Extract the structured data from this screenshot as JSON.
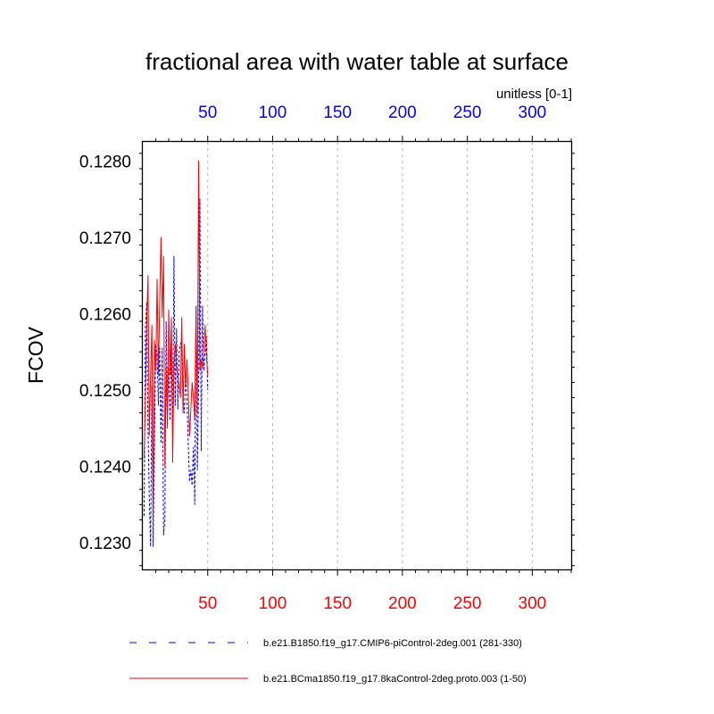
{
  "chart_data": {
    "type": "line",
    "title": "fractional area with water table at surface",
    "units_label": "unitless [0-1]",
    "ylabel": "FCOV",
    "xlabel": "",
    "xlim": [
      0,
      330
    ],
    "ylim": [
      0.12265,
      0.12825
    ],
    "x_ticks": [
      50,
      100,
      150,
      200,
      250,
      300
    ],
    "x_tick_labels": [
      "50",
      "100",
      "150",
      "200",
      "250",
      "300"
    ],
    "y_ticks": [
      0.123,
      0.124,
      0.125,
      0.126,
      0.127,
      0.128
    ],
    "y_tick_labels": [
      "0.1230",
      "0.1240",
      "0.1250",
      "0.1260",
      "0.1270",
      "0.1280"
    ],
    "bottom_axis_color": "#ff0000",
    "top_axis_color": "#0000ff",
    "grid": "vertical dashed at x ticks",
    "legend_position": "bottom",
    "series": [
      {
        "name": "b.e21.B1850.f19_g17.CMIP6-piControl-2deg.001 (281-330)",
        "color": "#0000ff",
        "dash": "dashed",
        "x": [
          1,
          2,
          3,
          4,
          5,
          6,
          7,
          8,
          9,
          10,
          11,
          12,
          13,
          14,
          15,
          16,
          17,
          18,
          19,
          20,
          21,
          22,
          23,
          24,
          25,
          26,
          27,
          28,
          29,
          30,
          31,
          32,
          33,
          34,
          35,
          36,
          37,
          38,
          39,
          40,
          41,
          42,
          43,
          44,
          45,
          46,
          47,
          48,
          49,
          50
        ],
        "values": [
          0.12335,
          0.1258,
          0.12615,
          0.1245,
          0.1236,
          0.12295,
          0.12505,
          0.12295,
          0.1244,
          0.1256,
          0.12545,
          0.1248,
          0.12555,
          0.1243,
          0.12555,
          0.1231,
          0.1233,
          0.1259,
          0.1247,
          0.1253,
          0.1246,
          0.12555,
          0.1246,
          0.12675,
          0.1248,
          0.1258,
          0.12475,
          0.1255,
          0.1256,
          0.12565,
          0.1249,
          0.1247,
          0.1252,
          0.1249,
          0.1243,
          0.1238,
          0.12395,
          0.12375,
          0.12425,
          0.1235,
          0.1261,
          0.12395,
          0.12505,
          0.1275,
          0.1242,
          0.1261,
          0.12525,
          0.1255,
          0.1257,
          0.125
        ]
      },
      {
        "name": "b.e21.BCma1850.f19_g17.8kaControl-2deg.proto.003 (1-50)",
        "color": "#ff0000",
        "dash": "solid",
        "x": [
          1,
          2,
          3,
          4,
          5,
          6,
          7,
          8,
          9,
          10,
          11,
          12,
          13,
          14,
          15,
          16,
          17,
          18,
          19,
          20,
          21,
          22,
          23,
          24,
          25,
          26,
          27,
          28,
          29,
          30,
          31,
          32,
          33,
          34,
          35,
          36,
          37,
          38,
          39,
          40,
          41,
          42,
          43,
          44,
          45,
          46,
          47,
          48,
          49,
          50
        ],
        "values": [
          0.1241,
          0.1249,
          0.12585,
          0.1265,
          0.1244,
          0.1252,
          0.12585,
          0.1233,
          0.12565,
          0.12525,
          0.12645,
          0.1252,
          0.1261,
          0.127,
          0.12595,
          0.12675,
          0.124,
          0.1253,
          0.1245,
          0.12605,
          0.1252,
          0.12595,
          0.12405,
          0.12535,
          0.1256,
          0.1253,
          0.1252,
          0.12505,
          0.1249,
          0.12595,
          0.1247,
          0.1256,
          0.12505,
          0.1254,
          0.125,
          0.1244,
          0.12475,
          0.1251,
          0.1249,
          0.1246,
          0.1261,
          0.1247,
          0.128,
          0.12525,
          0.1254,
          0.1253,
          0.12555,
          0.12585,
          0.12545,
          0.1252
        ]
      }
    ]
  }
}
